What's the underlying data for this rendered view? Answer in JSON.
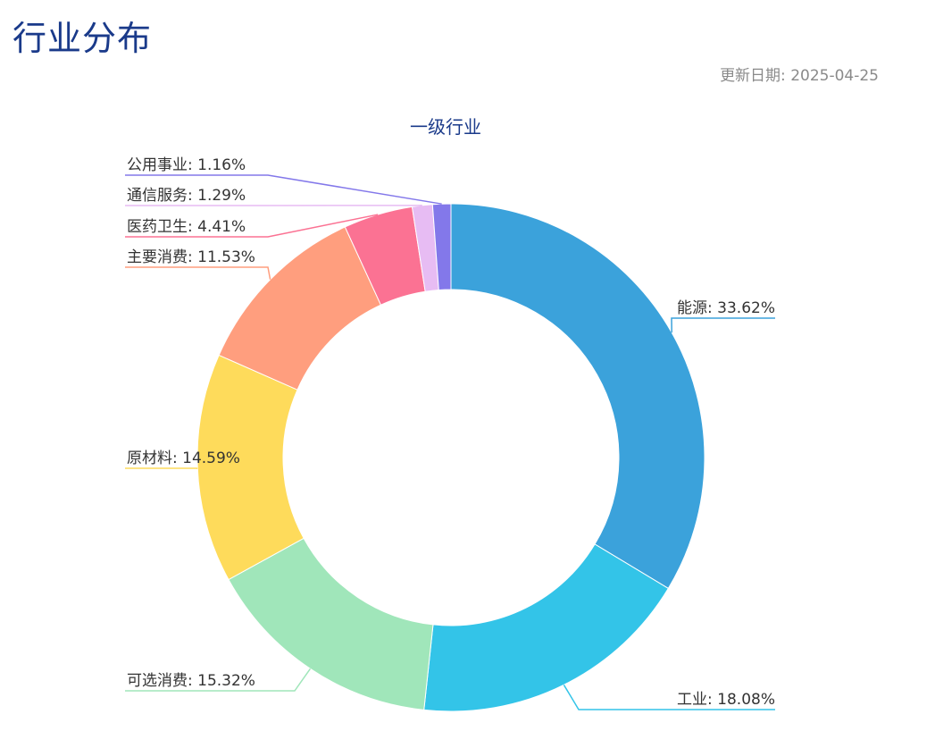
{
  "page": {
    "title": "行业分布",
    "update_date": "更新日期: 2025-04-25"
  },
  "chart_data": {
    "type": "pie",
    "variant": "donut",
    "title": "一级行业",
    "labels": [
      "能源",
      "工业",
      "可选消费",
      "原材料",
      "主要消费",
      "医药卫生",
      "通信服务",
      "公用事业"
    ],
    "values": [
      33.62,
      18.08,
      15.32,
      14.59,
      11.53,
      4.41,
      1.29,
      1.16
    ],
    "value_format": "percent",
    "colors": [
      "#3ba2db",
      "#33c4e8",
      "#a0e6ba",
      "#fedb5b",
      "#ff9e7e",
      "#fb7293",
      "#e7bcf3",
      "#8378ea"
    ],
    "legend": "none",
    "label_position": "outside-with-leader-lines"
  }
}
